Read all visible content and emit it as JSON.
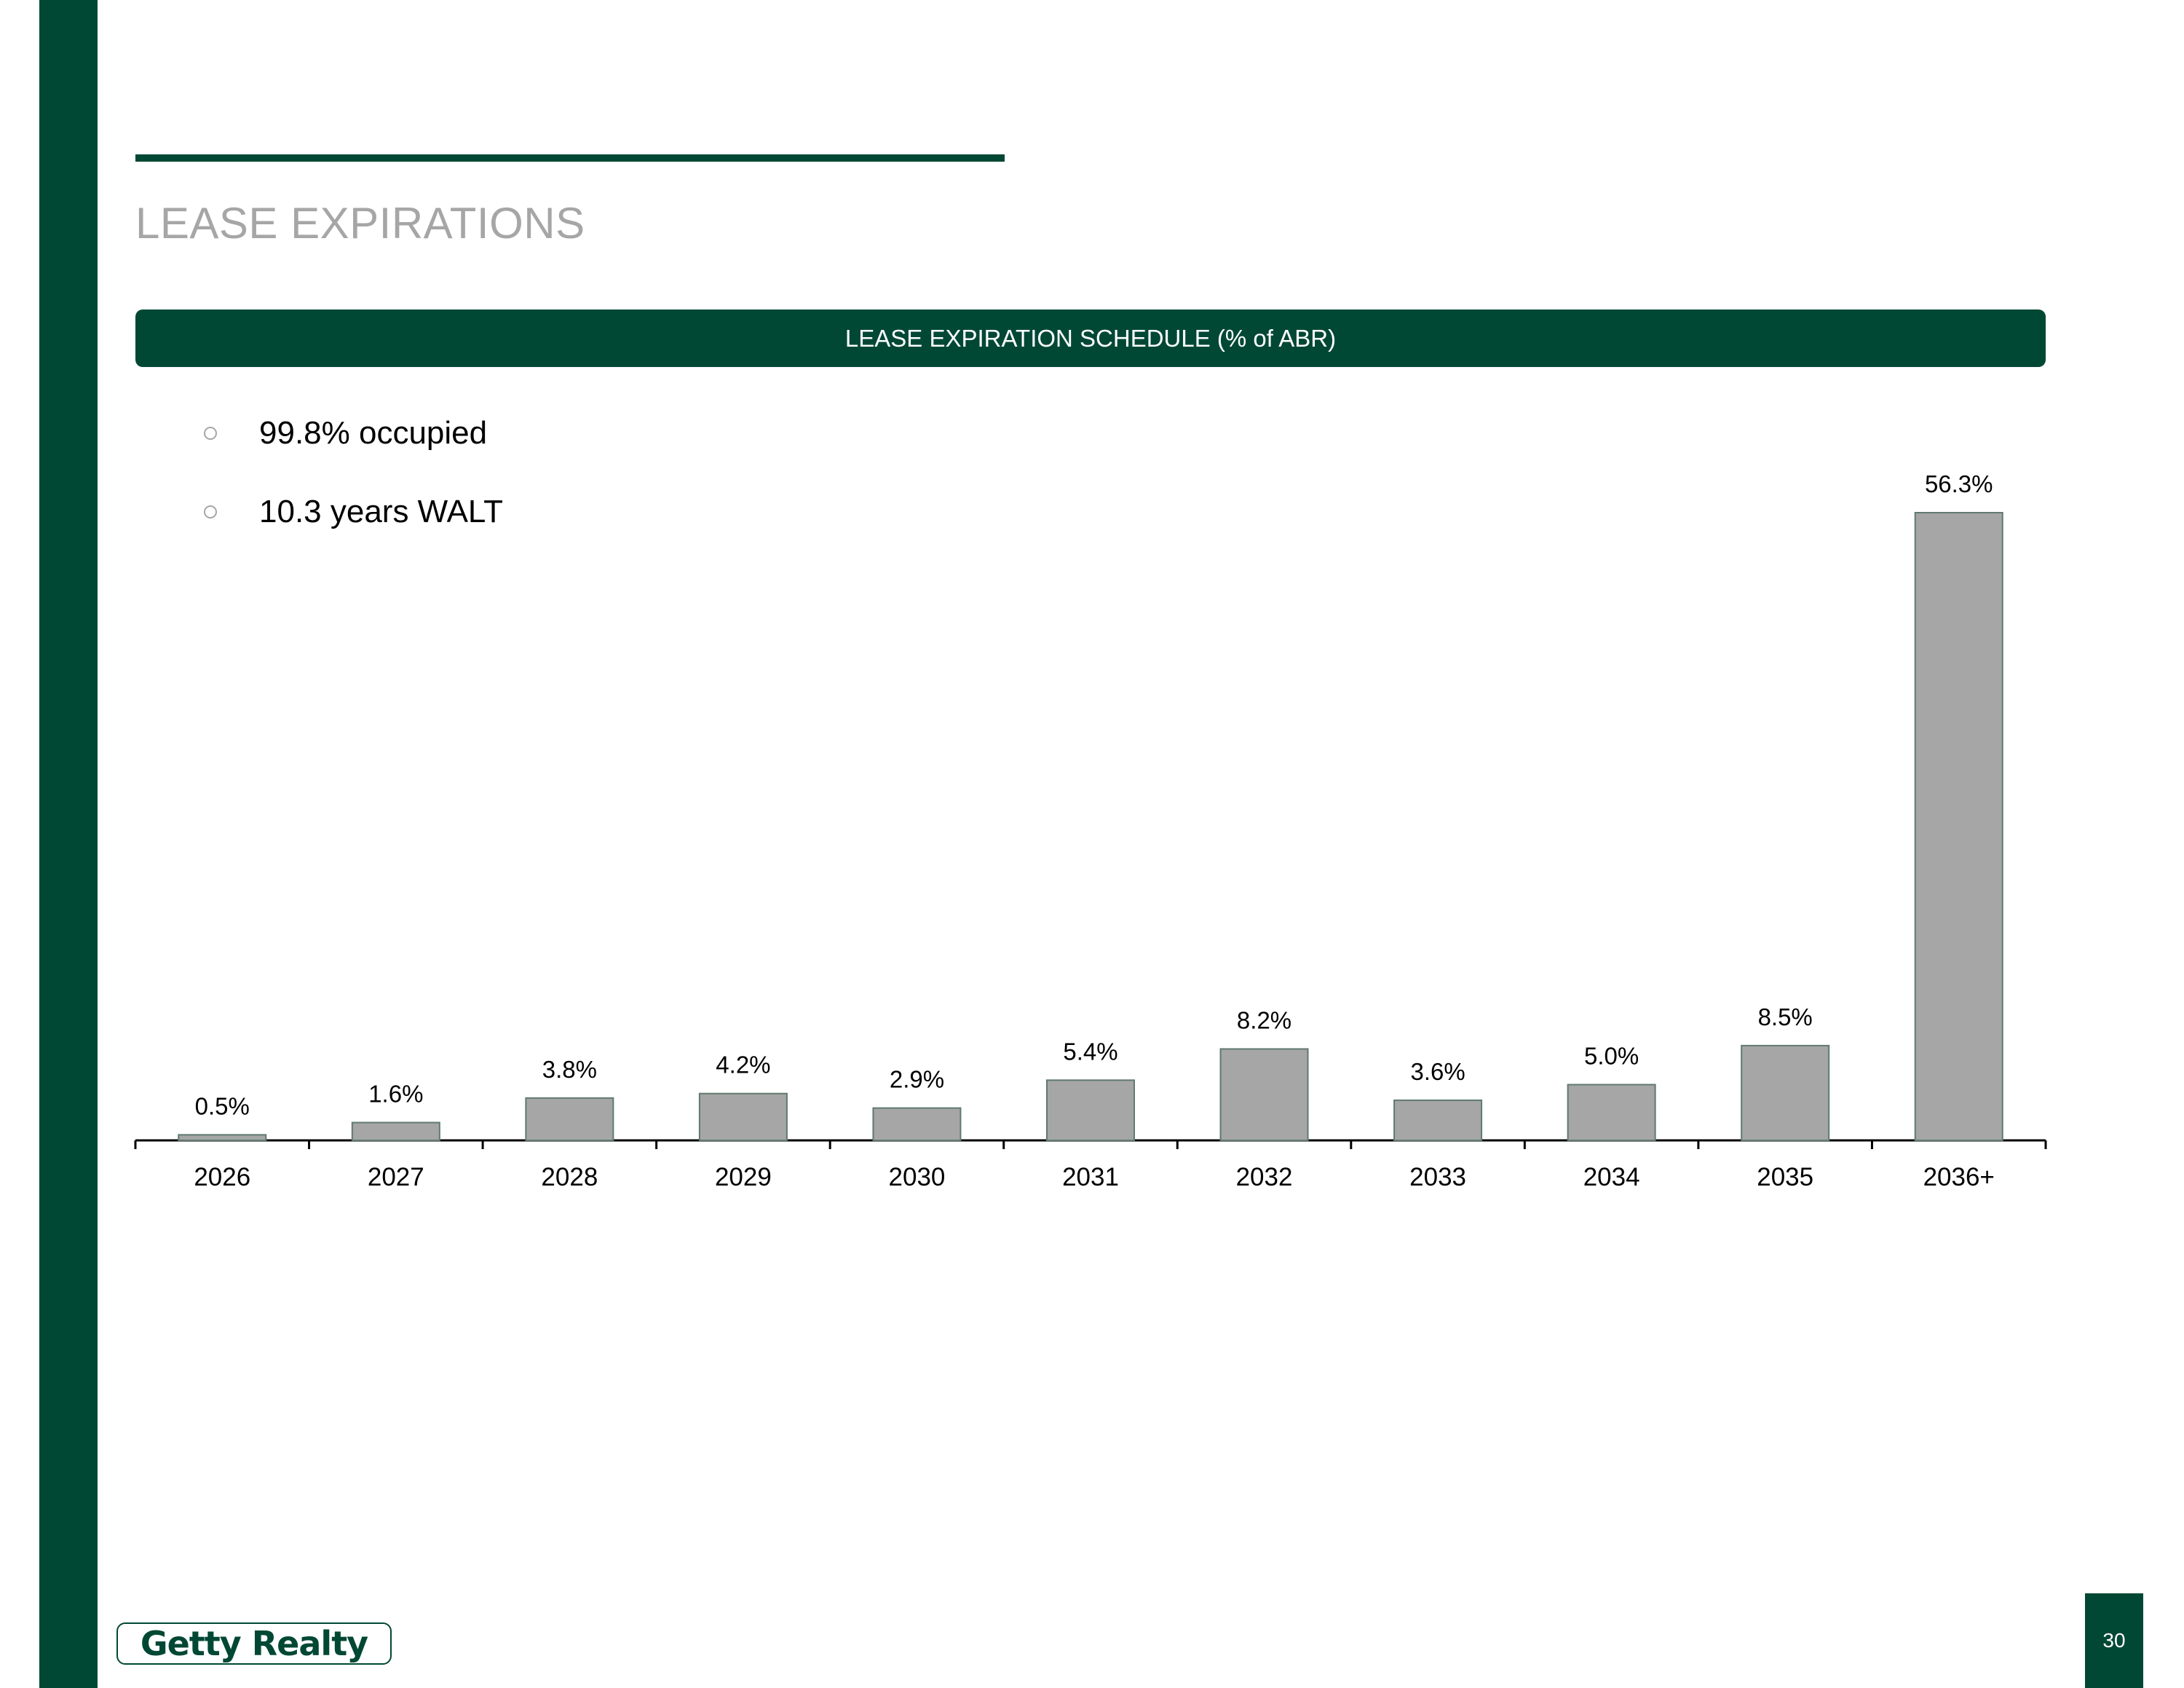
{
  "slide": {
    "title": "LEASE EXPIRATIONS",
    "banner": "LEASE EXPIRATION SCHEDULE (% of ABR)",
    "bullets": [
      "99.8% occupied",
      "10.3 years WALT"
    ],
    "logo_text": "Getty Realty",
    "page_number": "30"
  },
  "colors": {
    "brand_green": "#014834",
    "bar_fill": "#a6a6a6",
    "bar_stroke": "#5f7a6e",
    "title_gray": "#a6a6a6"
  },
  "chart_data": {
    "type": "bar",
    "title": "LEASE EXPIRATION SCHEDULE (% of ABR)",
    "categories": [
      "2026",
      "2027",
      "2028",
      "2029",
      "2030",
      "2031",
      "2032",
      "2033",
      "2034",
      "2035",
      "2036+"
    ],
    "values": [
      0.5,
      1.6,
      3.8,
      4.2,
      2.9,
      5.4,
      8.2,
      3.6,
      5.0,
      8.5,
      56.3
    ],
    "data_labels": [
      "0.5%",
      "1.6%",
      "3.8%",
      "4.2%",
      "2.9%",
      "5.4%",
      "8.2%",
      "3.6%",
      "5.0%",
      "8.5%",
      "56.3%"
    ],
    "ylim": [
      0,
      56.3
    ],
    "grid": false,
    "legend": "none"
  }
}
